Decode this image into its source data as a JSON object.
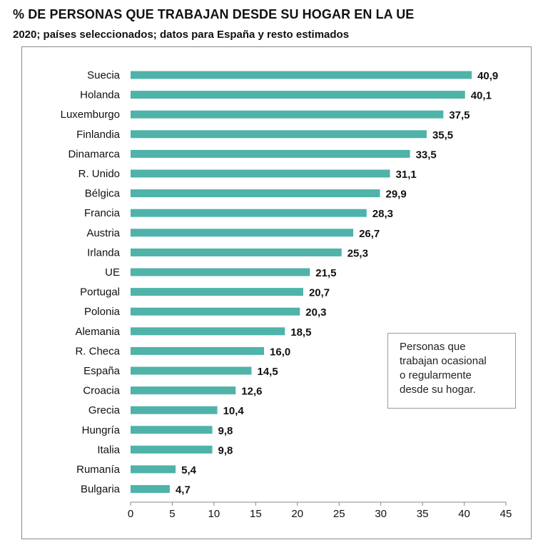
{
  "title": "% DE PERSONAS QUE TRABAJAN DESDE SU HOGAR EN LA UE",
  "subtitle": "2020; países seleccionados; datos para España y resto estimados",
  "legend_note": [
    "Personas que",
    "trabajan ocasional",
    "o regularmente",
    "desde su hogar."
  ],
  "colors": {
    "bar": "#4fb3a9",
    "axis": "#888888",
    "text": "#111111"
  },
  "chart_data": {
    "type": "bar",
    "orientation": "horizontal",
    "categories": [
      "Suecia",
      "Holanda",
      "Luxemburgo",
      "Finlandia",
      "Dinamarca",
      "R. Unido",
      "Bélgica",
      "Francia",
      "Austria",
      "Irlanda",
      "UE",
      "Portugal",
      "Polonia",
      "Alemania",
      "R. Checa",
      "España",
      "Croacia",
      "Grecia",
      "Hungría",
      "Italia",
      "Rumanía",
      "Bulgaria"
    ],
    "values": [
      40.9,
      40.1,
      37.5,
      35.5,
      33.5,
      31.1,
      29.9,
      28.3,
      26.7,
      25.3,
      21.5,
      20.7,
      20.3,
      18.5,
      16.0,
      14.5,
      12.6,
      10.4,
      9.8,
      9.8,
      5.4,
      4.7
    ],
    "value_labels": [
      "40,9",
      "40,1",
      "37,5",
      "35,5",
      "33,5",
      "31,1",
      "29,9",
      "28,3",
      "26,7",
      "25,3",
      "21,5",
      "20,7",
      "20,3",
      "18,5",
      "16,0",
      "14,5",
      "12,6",
      "10,4",
      "9,8",
      "9,8",
      "5,4",
      "4,7"
    ],
    "xlim": [
      0,
      45
    ],
    "xticks": [
      0,
      5,
      10,
      15,
      20,
      25,
      30,
      35,
      40,
      45
    ],
    "grid": false,
    "xlabel": "",
    "ylabel": ""
  }
}
